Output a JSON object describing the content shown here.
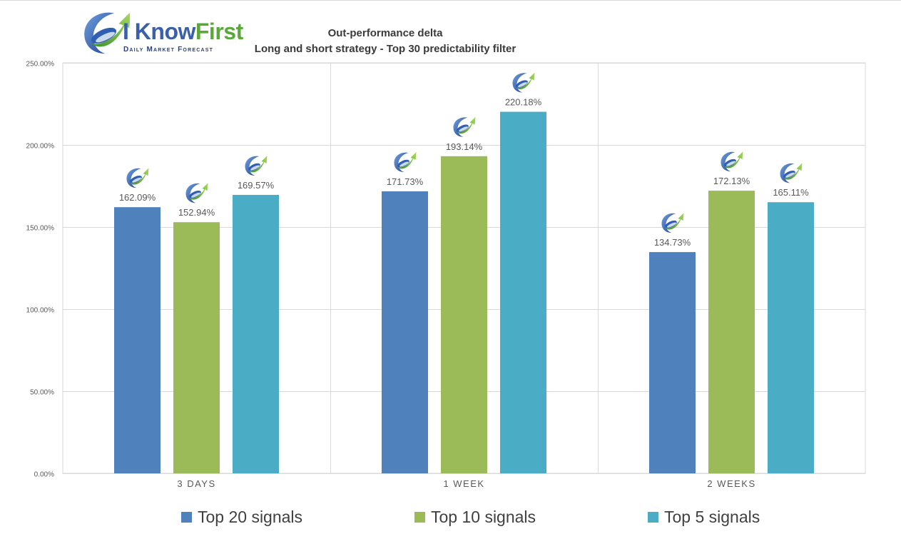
{
  "branding": {
    "logo_text_main": "I Know",
    "logo_text_accent": "First",
    "logo_tagline": "Daily Market Forecast"
  },
  "chart_data": {
    "type": "bar",
    "title": "Out-performance delta",
    "subtitle": "Long and short strategy - Top 30 predictability filter",
    "categories": [
      "3 DAYS",
      "1 WEEK",
      "2 WEEKS"
    ],
    "series": [
      {
        "name": "Top 20 signals",
        "color": "#4f81bd",
        "values": [
          162.09,
          171.73,
          134.73
        ],
        "labels": [
          "162.09%",
          "171.73%",
          "134.73%"
        ]
      },
      {
        "name": "Top 10 signals",
        "color": "#9bbb59",
        "values": [
          152.94,
          193.14,
          172.13
        ],
        "labels": [
          "152.94%",
          "193.14%",
          "172.13%"
        ]
      },
      {
        "name": "Top 5 signals",
        "color": "#4bacc6",
        "values": [
          169.57,
          220.18,
          165.11
        ],
        "labels": [
          "169.57%",
          "220.18%",
          "165.11%"
        ]
      }
    ],
    "ylim": [
      0,
      250
    ],
    "yticks": [
      0,
      50,
      100,
      150,
      200,
      250
    ],
    "ytick_labels": [
      "0.00%",
      "50.00%",
      "100.00%",
      "150.00%",
      "200.00%",
      "250.00%"
    ],
    "xlabel": "",
    "ylabel": "",
    "grid": true,
    "legend_position": "bottom",
    "bar_marker_icon": "iknowfirst-logo-icon"
  }
}
